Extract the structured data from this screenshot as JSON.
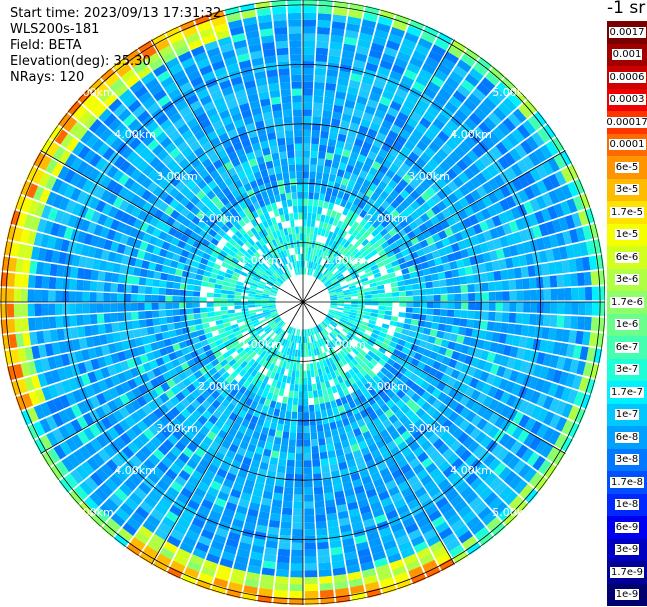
{
  "info": {
    "start_time": "Start time: 2023/09/13 17:31:32",
    "instrument": "WLS200s-181",
    "field": "Field: BETA",
    "elevation": "Elevation(deg): 35.30",
    "nrays": "NRays: 120"
  },
  "colorbar": {
    "unit": "-1 sr",
    "labels": [
      "0.0017",
      "0.001",
      "0.0006",
      "0.0003",
      "0.00017",
      "0.0001",
      "6e-5",
      "3e-5",
      "1.7e-5",
      "1e-5",
      "6e-6",
      "3e-6",
      "1.7e-6",
      "1e-6",
      "6e-7",
      "3e-7",
      "1.7e-7",
      "1e-7",
      "6e-8",
      "3e-8",
      "1.7e-8",
      "1e-8",
      "6e-9",
      "3e-9",
      "1.7e-9",
      "1e-9"
    ],
    "colors": [
      "#7a0000",
      "#a00000",
      "#cc0000",
      "#f00000",
      "#ff3500",
      "#ff6a00",
      "#ff9400",
      "#ffbb00",
      "#ffe200",
      "#f6ff00",
      "#d2ff1e",
      "#b0ff44",
      "#8cff6a",
      "#6aff8c",
      "#44ffb0",
      "#1effd8",
      "#00f0ff",
      "#00c8ff",
      "#00a0ff",
      "#0078ff",
      "#0050ff",
      "#0028ff",
      "#0000f0",
      "#0000c0",
      "#000096",
      "#00006e"
    ]
  },
  "chart_data": {
    "type": "heatmap",
    "subtype": "polar-ppi",
    "field": "BETA",
    "nrays": 120,
    "elevation_deg": 35.3,
    "range_rings_km": [
      1,
      2,
      3,
      4,
      5
    ],
    "ring_labels": [
      "1.00km",
      "2.00km",
      "3.00km",
      "4.00km",
      "5.00km"
    ],
    "max_range_km": 5.1,
    "grid": true
  }
}
